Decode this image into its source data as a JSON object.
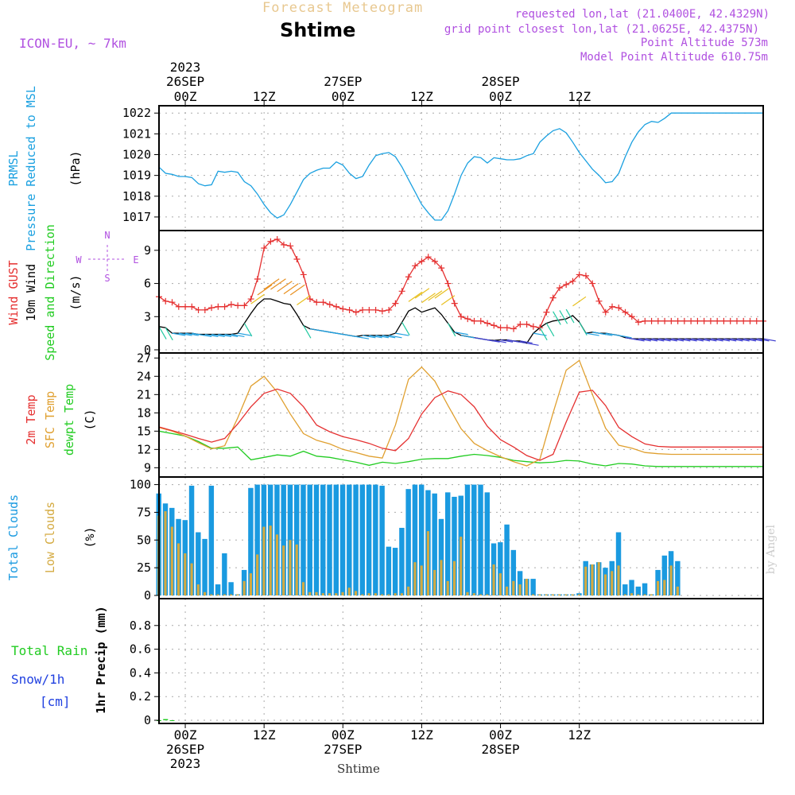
{
  "header": {
    "title": "Forecast Meteogram",
    "location": "Shtime",
    "model": "ICON-EU, ~ 7km",
    "requested": "requested lon,lat (21.0400E, 42.4329N)",
    "grid": "grid point closest lon,lat (21.0625E, 42.4375N)",
    "point_alt": "Point Altitude 573m",
    "model_alt": "Model Point Altitude 610.75m",
    "footer_location": "Shtime",
    "credit": "by Angel"
  },
  "colors": {
    "pressure": "#1aa0e0",
    "gust": "#e53030",
    "wind": "#000000",
    "green": "#22cc22",
    "sfc": "#e0a030",
    "cloud_total": "#1a9ae0",
    "cloud_low": "#d4aa40",
    "purple": "#b050e0",
    "rain": "#22cc22",
    "snow": "#2040e0"
  },
  "axis": {
    "top": {
      "year": "2023",
      "date_labels": [
        {
          "t": 0,
          "label": "26SEP"
        },
        {
          "t": 24,
          "label": "27SEP"
        },
        {
          "t": 48,
          "label": "28SEP"
        }
      ],
      "hour_labels": [
        {
          "t": 0,
          "label": "00Z"
        },
        {
          "t": 12,
          "label": "12Z"
        },
        {
          "t": 24,
          "label": "00Z"
        },
        {
          "t": 36,
          "label": "12Z"
        },
        {
          "t": 48,
          "label": "00Z"
        },
        {
          "t": 60,
          "label": "12Z"
        }
      ]
    },
    "bottom": {
      "year": "2023",
      "date_labels": [
        {
          "t": 0,
          "label": "26SEP"
        },
        {
          "t": 24,
          "label": "27SEP"
        },
        {
          "t": 48,
          "label": "28SEP"
        }
      ],
      "hour_labels": [
        {
          "t": 0,
          "label": "00Z"
        },
        {
          "t": 12,
          "label": "12Z"
        },
        {
          "t": 24,
          "label": "00Z"
        },
        {
          "t": 36,
          "label": "12Z"
        },
        {
          "t": 48,
          "label": "00Z"
        },
        {
          "t": 60,
          "label": "12Z"
        }
      ]
    }
  },
  "panel_labels": {
    "pressure": {
      "line1": "PRMSL",
      "line2": "Pressure Reduced to MSL",
      "unit": "(hPa)"
    },
    "wind": {
      "gust": "Wind GUST",
      "wind": "10m Wind",
      "dir": "Speed and Direction",
      "unit": "(m/s)",
      "compass_n": "N",
      "compass_s": "S",
      "compass_w": "W",
      "compass_e": "E"
    },
    "temp": {
      "t2m": "2m Temp",
      "sfc": "SFC Temp",
      "dew": "dewpt Temp",
      "unit": "(C)"
    },
    "cloud": {
      "total": "Total Clouds",
      "low": "Low Clouds",
      "unit": "(%)"
    },
    "precip": {
      "rain": "Total  Rain",
      "snow": "Snow/1h",
      "snow_unit": "[cm]",
      "unit": "1hr Precip (mm)"
    }
  },
  "chart_data": [
    {
      "type": "line",
      "name": "pressure",
      "ylim": [
        1016.5,
        1022.2
      ],
      "yticks": [
        1017,
        1018,
        1019,
        1020,
        1021,
        1022
      ],
      "x": [
        -4,
        -3,
        -2,
        -1,
        0,
        1,
        2,
        3,
        4,
        5,
        6,
        7,
        8,
        9,
        10,
        11,
        12,
        13,
        14,
        15,
        16,
        17,
        18,
        19,
        20,
        21,
        22,
        23,
        24,
        25,
        26,
        27,
        28,
        29,
        30,
        31,
        32,
        33,
        34,
        35,
        36,
        37,
        38,
        39,
        40,
        41,
        42,
        43,
        44,
        45,
        46,
        47,
        48,
        49,
        50,
        51,
        52,
        53,
        54,
        55,
        56,
        57,
        58,
        59,
        60,
        61,
        62,
        63,
        64,
        65,
        66,
        67,
        68,
        69,
        70,
        71,
        72,
        73,
        74,
        75,
        76,
        77,
        78,
        79,
        80,
        81,
        82,
        83,
        84,
        85,
        86,
        87,
        88,
        89,
        90
      ],
      "series": [
        {
          "values": [
            1019.4,
            1019.1,
            1019.05,
            1018.95,
            1018.95,
            1018.9,
            1018.6,
            1018.5,
            1018.55,
            1019.2,
            1019.15,
            1019.2,
            1019.15,
            1018.7,
            1018.5,
            1018.1,
            1017.6,
            1017.2,
            1016.95,
            1017.1,
            1017.6,
            1018.2,
            1018.8,
            1019.1,
            1019.25,
            1019.35,
            1019.35,
            1019.65,
            1019.5,
            1019.1,
            1018.85,
            1018.95,
            1019.5,
            1019.95,
            1020.05,
            1020.1,
            1019.9,
            1019.4,
            1018.8,
            1018.2,
            1017.6,
            1017.2,
            1016.85,
            1016.85,
            1017.3,
            1018.1,
            1019.0,
            1019.6,
            1019.9,
            1019.85,
            1019.6,
            1019.85,
            1019.8,
            1019.75,
            1019.75,
            1019.8,
            1019.95,
            1020.05,
            1020.6,
            1020.9,
            1021.15,
            1021.25,
            1021.05,
            1020.6,
            1020.1,
            1019.7,
            1019.3,
            1019.0,
            1018.65,
            1018.7,
            1019.1,
            1019.9,
            1020.6,
            1021.1,
            1021.45,
            1021.6,
            1021.55,
            1021.75,
            1022.0,
            1022.0,
            1022.0,
            1022.0,
            1022.0,
            1022.0,
            1022.0,
            1022.0,
            1022.0,
            1022.0,
            1022.0,
            1022.0,
            1022.0,
            1022.0,
            1022.0,
            1022.0,
            1022.0
          ]
        }
      ]
    },
    {
      "type": "line",
      "name": "wind",
      "ylim": [
        0,
        10.5
      ],
      "yticks": [
        0,
        3,
        6,
        9
      ],
      "x": [
        -4,
        -3,
        -2,
        -1,
        0,
        1,
        2,
        3,
        4,
        5,
        6,
        7,
        8,
        9,
        10,
        11,
        12,
        13,
        14,
        15,
        16,
        17,
        18,
        19,
        20,
        21,
        22,
        23,
        24,
        25,
        26,
        27,
        28,
        29,
        30,
        31,
        32,
        33,
        34,
        35,
        36,
        37,
        38,
        39,
        40,
        41,
        42,
        43,
        44,
        45,
        46,
        47,
        48,
        49,
        50,
        51,
        52,
        53,
        54,
        55,
        56,
        57,
        58,
        59,
        60,
        61,
        62,
        63,
        64,
        65,
        66,
        67,
        68,
        69,
        70,
        71,
        72,
        73,
        74,
        75,
        76,
        77,
        78,
        79,
        80,
        81,
        82,
        83,
        84,
        85,
        86,
        87,
        88,
        89,
        90
      ],
      "series": [
        {
          "name": "Wind GUST",
          "values": [
            4.8,
            4.4,
            4.3,
            3.9,
            3.9,
            3.9,
            3.6,
            3.6,
            3.8,
            3.9,
            3.9,
            4.1,
            4.0,
            4.0,
            4.6,
            6.4,
            9.2,
            9.8,
            10.0,
            9.5,
            9.4,
            8.2,
            6.8,
            4.6,
            4.3,
            4.3,
            4.1,
            3.9,
            3.7,
            3.6,
            3.4,
            3.6,
            3.6,
            3.6,
            3.5,
            3.6,
            4.2,
            5.3,
            6.6,
            7.6,
            8.0,
            8.4,
            8.0,
            7.4,
            6.0,
            4.2,
            3.0,
            2.8,
            2.6,
            2.6,
            2.4,
            2.2,
            2.0,
            2.0,
            1.9,
            2.3,
            2.3,
            2.1,
            2.0,
            3.4,
            4.7,
            5.6,
            5.9,
            6.2,
            6.8,
            6.7,
            6.0,
            4.4,
            3.4,
            3.9,
            3.8,
            3.4,
            3.0,
            2.5,
            2.6,
            2.6,
            2.6,
            2.6,
            2.6,
            2.6,
            2.6,
            2.6,
            2.6,
            2.6,
            2.6,
            2.6,
            2.6,
            2.6,
            2.6,
            2.6,
            2.6,
            2.6,
            2.6,
            2.6,
            2.6
          ]
        },
        {
          "name": "10m Wind",
          "values": [
            2.1,
            2.0,
            1.5,
            1.5,
            1.5,
            1.5,
            1.4,
            1.4,
            1.4,
            1.4,
            1.4,
            1.4,
            1.5,
            2.4,
            3.3,
            4.1,
            4.6,
            4.6,
            4.4,
            4.2,
            4.1,
            3.2,
            2.2,
            1.9,
            1.8,
            1.7,
            1.6,
            1.5,
            1.4,
            1.3,
            1.2,
            1.3,
            1.3,
            1.3,
            1.3,
            1.3,
            1.5,
            2.5,
            3.5,
            3.8,
            3.4,
            3.6,
            3.8,
            3.2,
            2.4,
            1.6,
            1.3,
            1.2,
            1.1,
            1.0,
            0.9,
            0.85,
            0.9,
            0.9,
            0.8,
            0.8,
            0.6,
            1.5,
            2.0,
            2.4,
            2.6,
            2.7,
            2.8,
            3.1,
            2.5,
            1.5,
            1.6,
            1.5,
            1.5,
            1.4,
            1.3,
            1.1,
            1.0,
            1.0,
            1.0,
            1.0,
            1.0,
            1.0,
            1.0,
            1.0,
            1.0,
            1.0,
            1.0,
            1.0,
            1.0,
            1.0,
            1.0,
            1.0,
            1.0,
            1.0,
            1.0,
            1.0,
            1.0,
            1.0,
            1.0
          ]
        }
      ]
    },
    {
      "type": "line",
      "name": "temperature",
      "ylim": [
        8,
        27.3
      ],
      "yticks": [
        9,
        12,
        15,
        18,
        21,
        24,
        27
      ],
      "x": [
        -4,
        -2,
        0,
        2,
        4,
        6,
        8,
        10,
        12,
        14,
        16,
        18,
        20,
        22,
        24,
        26,
        28,
        30,
        32,
        34,
        36,
        38,
        40,
        42,
        44,
        46,
        48,
        50,
        52,
        54,
        56,
        58,
        60,
        62,
        64,
        66,
        68,
        70,
        72,
        74,
        76,
        78,
        80,
        82,
        84,
        86,
        88,
        90
      ],
      "series": [
        {
          "name": "2m Temp",
          "values": [
            15.7,
            15.1,
            14.5,
            13.8,
            13.2,
            13.8,
            16.2,
            19.0,
            21.2,
            21.9,
            21.2,
            19.0,
            16.0,
            14.9,
            14.1,
            13.6,
            13.0,
            12.2,
            11.8,
            13.8,
            17.8,
            20.5,
            21.6,
            21.0,
            19.0,
            15.8,
            13.6,
            12.4,
            11.0,
            10.2,
            11.2,
            16.5,
            21.4,
            21.7,
            19.2,
            15.6,
            14.1,
            12.9,
            12.5,
            12.4,
            12.4,
            12.4,
            12.4,
            12.4,
            12.4,
            12.4,
            12.4,
            12.4
          ]
        },
        {
          "name": "SFC Temp",
          "values": [
            15.6,
            15.0,
            14.2,
            13.1,
            12.1,
            12.6,
            17.2,
            22.4,
            24.0,
            21.4,
            17.8,
            14.6,
            13.5,
            12.9,
            12.0,
            11.5,
            10.9,
            10.6,
            16.0,
            23.5,
            25.5,
            23.2,
            19.2,
            15.4,
            13.0,
            11.8,
            10.8,
            10.0,
            9.3,
            10.4,
            18.0,
            25.0,
            26.6,
            21.0,
            15.5,
            12.7,
            12.2,
            11.5,
            11.3,
            11.2,
            11.2,
            11.2,
            11.2,
            11.2,
            11.2,
            11.2,
            11.2,
            11.2
          ]
        },
        {
          "name": "dewpt Temp",
          "values": [
            15.0,
            14.6,
            14.2,
            13.3,
            12.2,
            12.2,
            12.4,
            10.3,
            10.7,
            11.1,
            10.9,
            11.7,
            10.9,
            10.7,
            10.3,
            9.9,
            9.4,
            9.9,
            9.7,
            10.0,
            10.4,
            10.5,
            10.5,
            10.9,
            11.2,
            11.0,
            10.7,
            10.2,
            10.0,
            9.8,
            9.9,
            10.2,
            10.1,
            9.6,
            9.3,
            9.7,
            9.6,
            9.3,
            9.2,
            9.2,
            9.2,
            9.2,
            9.2,
            9.2,
            9.2,
            9.2,
            9.2,
            9.2
          ]
        }
      ]
    },
    {
      "type": "bar",
      "name": "cloud",
      "ylim": [
        0,
        104
      ],
      "yticks": [
        0,
        25,
        50,
        75,
        100
      ],
      "x": [
        -4,
        -3,
        -2,
        -1,
        0,
        1,
        2,
        3,
        4,
        5,
        6,
        7,
        8,
        9,
        10,
        11,
        12,
        13,
        14,
        15,
        16,
        17,
        18,
        19,
        20,
        21,
        22,
        23,
        24,
        25,
        26,
        27,
        28,
        29,
        30,
        31,
        32,
        33,
        34,
        35,
        36,
        37,
        38,
        39,
        40,
        41,
        42,
        43,
        44,
        45,
        46,
        47,
        48,
        49,
        50,
        51,
        52,
        53,
        54,
        55,
        56,
        57,
        58,
        59,
        60,
        61,
        62,
        63,
        64,
        65,
        66,
        67,
        68,
        69,
        70,
        71,
        72,
        73,
        74,
        75
      ],
      "series": [
        {
          "name": "Total Clouds",
          "values": [
            92,
            83,
            79,
            69,
            68,
            99,
            57,
            51,
            99,
            10,
            38,
            12,
            1,
            23,
            97,
            100,
            100,
            100,
            100,
            100,
            100,
            100,
            100,
            100,
            100,
            100,
            100,
            100,
            100,
            100,
            100,
            100,
            100,
            100,
            99,
            44,
            43,
            61,
            96,
            100,
            100,
            95,
            92,
            69,
            93,
            89,
            90,
            100,
            100,
            100,
            93,
            47,
            48,
            64,
            41,
            22,
            15,
            15,
            1,
            1,
            1,
            1,
            1,
            1,
            2,
            31,
            28,
            30,
            25,
            31,
            57,
            10,
            14,
            8,
            11,
            1,
            23,
            36,
            40,
            31
          ]
        },
        {
          "name": "Low Clouds",
          "values": [
            72,
            76,
            62,
            47,
            38,
            29,
            10,
            3,
            1,
            1,
            1,
            1,
            1,
            13,
            20,
            37,
            62,
            63,
            55,
            45,
            50,
            46,
            12,
            3,
            3,
            2,
            2,
            2,
            3,
            7,
            4,
            1,
            2,
            2,
            1,
            1,
            2,
            2,
            8,
            30,
            27,
            58,
            23,
            32,
            13,
            31,
            53,
            3,
            2,
            1,
            1,
            28,
            20,
            8,
            13,
            10,
            15,
            1,
            1,
            1,
            1,
            1,
            1,
            1,
            1,
            26,
            28,
            30,
            19,
            22,
            27,
            1,
            2,
            1,
            1,
            1,
            13,
            14,
            27,
            8
          ]
        }
      ]
    },
    {
      "type": "bar",
      "name": "precip",
      "ylim": [
        0,
        1.0
      ],
      "yticks": [
        0,
        0.2,
        0.4,
        0.6,
        0.8
      ],
      "x": [
        -4,
        -3,
        -2
      ],
      "series": [
        {
          "name": "Total Rain",
          "values": [
            0.0,
            0.01,
            0.0
          ]
        },
        {
          "name": "Snow/1h",
          "values": [
            0.0,
            0.0,
            0.0
          ]
        }
      ]
    }
  ]
}
